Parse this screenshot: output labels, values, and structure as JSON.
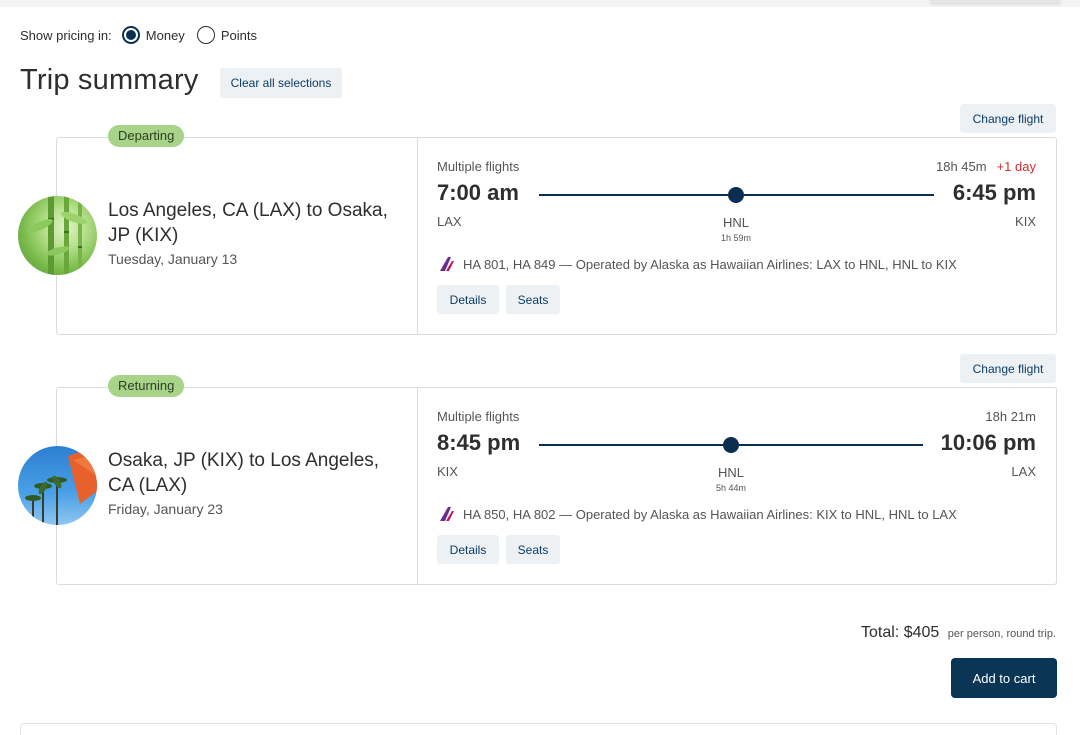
{
  "pricing": {
    "label": "Show pricing in:",
    "options": [
      {
        "label": "Money",
        "selected": true
      },
      {
        "label": "Points",
        "selected": false
      }
    ]
  },
  "title": "Trip summary",
  "clear_label": "Clear all selections",
  "change_label": "Change flight",
  "segments": [
    {
      "badge": "Departing",
      "route": "Los Angeles, CA (LAX) to Osaka, JP (KIX)",
      "date": "Tuesday, January 13",
      "multi": "Multiple flights",
      "duration": "18h 45m",
      "plus_day": "+1 day",
      "dep_time": "7:00 am",
      "arr_time": "6:45 pm",
      "dep_code": "LAX",
      "arr_code": "KIX",
      "stop": "HNL",
      "layover": "1h 59m",
      "operated": "HA 801, HA 849 — Operated by Alaska as Hawaiian Airlines: LAX to HNL, HNL to KIX",
      "details_label": "Details",
      "seats_label": "Seats"
    },
    {
      "badge": "Returning",
      "route": "Osaka, JP (KIX) to Los Angeles, CA (LAX)",
      "date": "Friday, January 23",
      "multi": "Multiple flights",
      "duration": "18h 21m",
      "plus_day": "",
      "dep_time": "8:45 pm",
      "arr_time": "10:06 pm",
      "dep_code": "KIX",
      "arr_code": "LAX",
      "stop": "HNL",
      "layover": "5h 44m",
      "operated": "HA 850, HA 802 — Operated by Alaska as Hawaiian Airlines: KIX to HNL, HNL to LAX",
      "details_label": "Details",
      "seats_label": "Seats"
    }
  ],
  "total": {
    "label": "Total:",
    "amount": "$405",
    "suffix": "per person, round trip."
  },
  "cart_label": "Add to cart",
  "colors": {
    "primary": "#0a3555",
    "badge": "#a8d48a",
    "plus_day": "#d0312d",
    "button_bg": "#eef1f4"
  }
}
